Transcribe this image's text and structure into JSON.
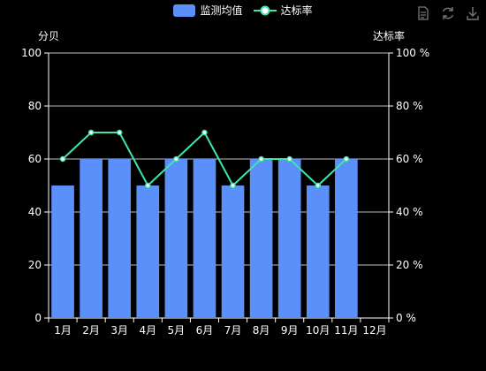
{
  "legend": {
    "bar_label": "监测均值",
    "line_label": "达标率"
  },
  "toolbox": {
    "icons": [
      "data-view-icon",
      "refresh-icon",
      "download-icon"
    ]
  },
  "colors": {
    "bar": "#5b8ff9",
    "line": "#3ee6a8",
    "background": "#000000",
    "axis": "#ffffff"
  },
  "chart_data": {
    "type": "bar",
    "categories": [
      "1月",
      "2月",
      "3月",
      "4月",
      "5月",
      "6月",
      "7月",
      "8月",
      "9月",
      "10月",
      "11月",
      "12月"
    ],
    "series": [
      {
        "name": "监测均值",
        "type": "bar",
        "axis": "left",
        "values": [
          50,
          60,
          60,
          50,
          60,
          60,
          50,
          60,
          60,
          50,
          60,
          null
        ]
      },
      {
        "name": "达标率",
        "type": "line",
        "axis": "right",
        "values": [
          60,
          70,
          70,
          50,
          60,
          70,
          50,
          60,
          60,
          50,
          60,
          null
        ]
      }
    ],
    "y_left": {
      "name": "分贝",
      "ylim": [
        0,
        100
      ],
      "ticks": [
        0,
        20,
        40,
        60,
        80,
        100
      ],
      "tick_labels": [
        "0",
        "20",
        "40",
        "60",
        "80",
        "100"
      ]
    },
    "y_right": {
      "name": "达标率",
      "ylim": [
        0,
        100
      ],
      "ticks": [
        0,
        20,
        40,
        60,
        80,
        100
      ],
      "tick_labels": [
        "0 %",
        "20 %",
        "40 %",
        "60 %",
        "80 %",
        "100 %"
      ]
    },
    "grid": true,
    "legend_position": "top-center"
  }
}
